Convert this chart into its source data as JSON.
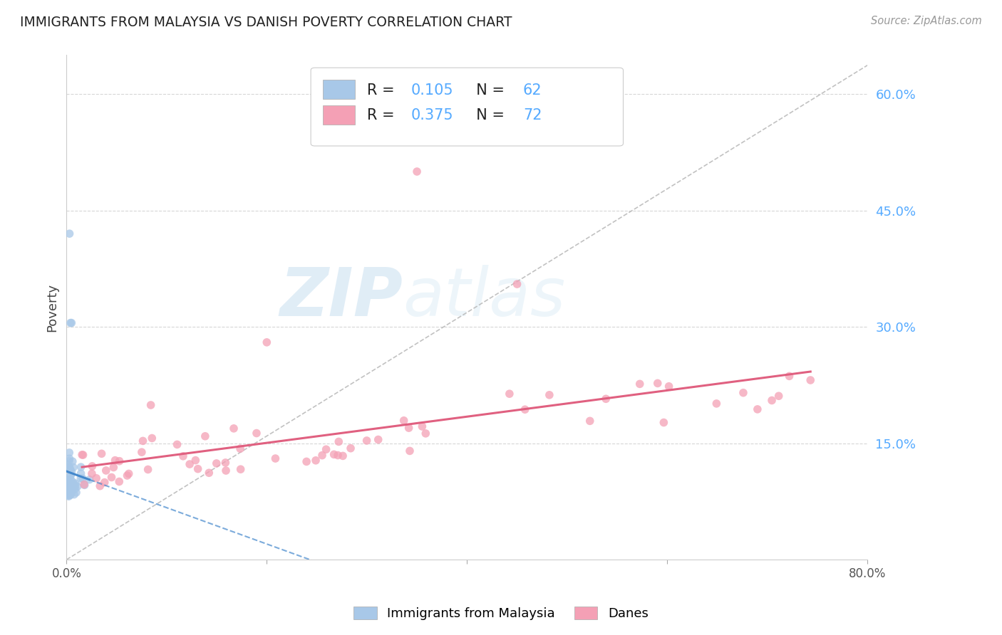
{
  "title": "IMMIGRANTS FROM MALAYSIA VS DANISH POVERTY CORRELATION CHART",
  "source": "Source: ZipAtlas.com",
  "ylabel": "Poverty",
  "xmin": 0.0,
  "xmax": 0.8,
  "ymin": 0.0,
  "ymax": 0.65,
  "color_blue": "#A8C8E8",
  "color_pink": "#F4A0B5",
  "color_blue_line": "#4488CC",
  "color_pink_line": "#E06080",
  "color_diag": "#BBBBBB",
  "color_ytick": "#55AAFF",
  "legend_label1": "Immigrants from Malaysia",
  "legend_label2": "Danes",
  "watermark_zip": "ZIP",
  "watermark_atlas": "atlas",
  "blue_R": 0.105,
  "blue_N": 62,
  "pink_R": 0.375,
  "pink_N": 72
}
